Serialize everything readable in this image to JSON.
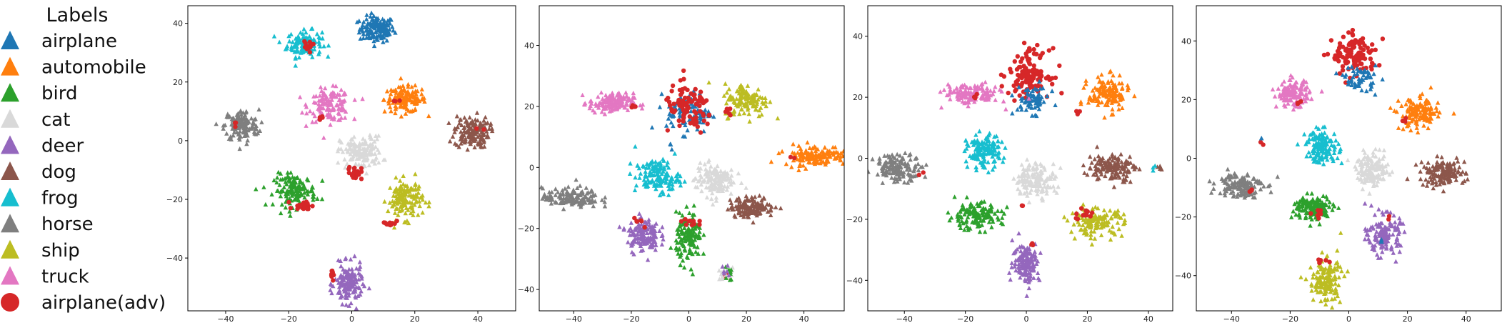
{
  "legend": {
    "title": "Labels",
    "placement": "left"
  },
  "classes": [
    {
      "key": "airplane",
      "label": "airplane",
      "color": "#1f77b4",
      "marker": "triangle"
    },
    {
      "key": "automobile",
      "label": "automobile",
      "color": "#ff7f0e",
      "marker": "triangle"
    },
    {
      "key": "bird",
      "label": "bird",
      "color": "#2ca02c",
      "marker": "triangle"
    },
    {
      "key": "cat",
      "label": "cat",
      "color": "#d9d9d9",
      "marker": "triangle"
    },
    {
      "key": "deer",
      "label": "deer",
      "color": "#9467bd",
      "marker": "triangle"
    },
    {
      "key": "dog",
      "label": "dog",
      "color": "#8c564b",
      "marker": "triangle"
    },
    {
      "key": "frog",
      "label": "frog",
      "color": "#17becf",
      "marker": "triangle"
    },
    {
      "key": "horse",
      "label": "horse",
      "color": "#7f7f7f",
      "marker": "triangle"
    },
    {
      "key": "ship",
      "label": "ship",
      "color": "#bcbd22",
      "marker": "triangle"
    },
    {
      "key": "truck",
      "label": "truck",
      "color": "#e377c2",
      "marker": "triangle"
    },
    {
      "key": "airplane_adv",
      "label": "airplane(adv)",
      "color": "#d62728",
      "marker": "circle"
    }
  ],
  "chart_data": [
    {
      "type": "scatter",
      "xlim": [
        -52,
        52
      ],
      "ylim": [
        -58,
        46
      ],
      "xticks": [
        -40,
        -20,
        0,
        20,
        40
      ],
      "yticks": [
        -40,
        -20,
        0,
        20,
        40
      ],
      "clusters": [
        {
          "cls": "airplane",
          "cx": 8,
          "cy": 38,
          "rx": 5,
          "ry": 4,
          "n": 140
        },
        {
          "cls": "frog",
          "cx": -15,
          "cy": 33,
          "rx": 5,
          "ry": 4,
          "n": 130
        },
        {
          "cls": "automobile",
          "cx": 17,
          "cy": 14,
          "rx": 6,
          "ry": 4,
          "n": 140
        },
        {
          "cls": "truck",
          "cx": -7,
          "cy": 12,
          "rx": 6,
          "ry": 5,
          "n": 140
        },
        {
          "cls": "horse",
          "cx": -35,
          "cy": 5,
          "rx": 5,
          "ry": 5,
          "n": 140
        },
        {
          "cls": "dog",
          "cx": 38,
          "cy": 3,
          "rx": 5,
          "ry": 5,
          "n": 140
        },
        {
          "cls": "cat",
          "cx": 3,
          "cy": -4,
          "rx": 6,
          "ry": 5,
          "n": 140
        },
        {
          "cls": "bird",
          "cx": -18,
          "cy": -17,
          "rx": 6,
          "ry": 5,
          "n": 140
        },
        {
          "cls": "ship",
          "cx": 17,
          "cy": -20,
          "rx": 5,
          "ry": 6,
          "n": 140
        },
        {
          "cls": "deer",
          "cx": -1,
          "cy": -49,
          "rx": 4,
          "ry": 6,
          "n": 140
        },
        {
          "cls": "airplane_adv",
          "cx": -14,
          "cy": 32,
          "rx": 1.5,
          "ry": 2,
          "n": 12
        },
        {
          "cls": "airplane_adv",
          "cx": -15,
          "cy": -22,
          "rx": 3,
          "ry": 1.5,
          "n": 22
        },
        {
          "cls": "airplane_adv",
          "cx": 1,
          "cy": -11,
          "rx": 2,
          "ry": 2,
          "n": 22
        },
        {
          "cls": "airplane_adv",
          "cx": 12,
          "cy": -28,
          "rx": 2,
          "ry": 1,
          "n": 12
        },
        {
          "cls": "airplane_adv",
          "cx": -6,
          "cy": -46,
          "rx": 1,
          "ry": 2,
          "n": 10
        },
        {
          "cls": "airplane_adv",
          "cx": -10,
          "cy": 8,
          "rx": 1,
          "ry": 1,
          "n": 5
        },
        {
          "cls": "airplane_adv",
          "cx": -37,
          "cy": 6,
          "rx": 1,
          "ry": 1,
          "n": 3
        },
        {
          "cls": "airplane_adv",
          "cx": 14,
          "cy": 14,
          "rx": 1,
          "ry": 1,
          "n": 3
        },
        {
          "cls": "airplane_adv",
          "cx": 41,
          "cy": 5,
          "rx": 1,
          "ry": 1,
          "n": 2
        }
      ]
    },
    {
      "type": "scatter",
      "xlim": [
        -52,
        54
      ],
      "ylim": [
        -47,
        53
      ],
      "xticks": [
        -40,
        -20,
        0,
        20,
        40
      ],
      "yticks": [
        -40,
        -20,
        0,
        20,
        40
      ],
      "clusters": [
        {
          "cls": "truck",
          "cx": -27,
          "cy": 21,
          "rx": 7,
          "ry": 3,
          "n": 140
        },
        {
          "cls": "airplane",
          "cx": 0,
          "cy": 18,
          "rx": 7,
          "ry": 6,
          "n": 90
        },
        {
          "cls": "ship",
          "cx": 20,
          "cy": 22,
          "rx": 7,
          "ry": 5,
          "n": 130
        },
        {
          "cls": "automobile",
          "cx": 44,
          "cy": 4,
          "rx": 10,
          "ry": 3,
          "n": 140
        },
        {
          "cls": "frog",
          "cx": -11,
          "cy": -3,
          "rx": 7,
          "ry": 5,
          "n": 140
        },
        {
          "cls": "cat",
          "cx": 9,
          "cy": -4,
          "rx": 6,
          "ry": 5,
          "n": 140
        },
        {
          "cls": "horse",
          "cx": -41,
          "cy": -10,
          "rx": 9,
          "ry": 3,
          "n": 140
        },
        {
          "cls": "dog",
          "cx": 22,
          "cy": -13,
          "rx": 7,
          "ry": 3,
          "n": 140
        },
        {
          "cls": "deer",
          "cx": -16,
          "cy": -22,
          "rx": 5,
          "ry": 5,
          "n": 140
        },
        {
          "cls": "bird",
          "cx": 0,
          "cy": -23,
          "rx": 4,
          "ry": 7,
          "n": 140
        },
        {
          "cls": "airplane_adv",
          "cx": 0,
          "cy": 19,
          "rx": 8,
          "ry": 7,
          "n": 90
        },
        {
          "cls": "airplane_adv",
          "cx": 14,
          "cy": 18,
          "rx": 2,
          "ry": 2,
          "n": 6
        },
        {
          "cls": "airplane_adv",
          "cx": -19,
          "cy": 20,
          "rx": 1,
          "ry": 1,
          "n": 4
        },
        {
          "cls": "airplane_adv",
          "cx": 0,
          "cy": -18,
          "rx": 3,
          "ry": 2,
          "n": 10
        },
        {
          "cls": "airplane_adv",
          "cx": -17,
          "cy": -18,
          "rx": 2,
          "ry": 2,
          "n": 6
        },
        {
          "cls": "airplane_adv",
          "cx": 36,
          "cy": 3,
          "rx": 1,
          "ry": 1,
          "n": 2
        },
        {
          "cls": "airplane_adv",
          "cx": 13,
          "cy": -35,
          "rx": 1,
          "ry": 1,
          "n": 3
        },
        {
          "cls": "cat",
          "cx": 13,
          "cy": -35,
          "rx": 3,
          "ry": 2,
          "n": 18
        },
        {
          "cls": "bird",
          "cx": 14,
          "cy": -35,
          "rx": 2,
          "ry": 2,
          "n": 8
        },
        {
          "cls": "deer",
          "cx": 12,
          "cy": -34,
          "rx": 2,
          "ry": 2,
          "n": 6
        },
        {
          "cls": "airplane",
          "cx": -6,
          "cy": 7,
          "rx": 1,
          "ry": 1,
          "n": 3
        }
      ]
    },
    {
      "type": "scatter",
      "xlim": [
        -52,
        48
      ],
      "ylim": [
        -50,
        50
      ],
      "xticks": [
        -40,
        -20,
        0,
        20,
        40
      ],
      "yticks": [
        -40,
        -20,
        0,
        20,
        40
      ],
      "clusters": [
        {
          "cls": "airplane_adv",
          "cx": 1,
          "cy": 28,
          "rx": 6,
          "ry": 7,
          "n": 130
        },
        {
          "cls": "airplane",
          "cx": 2,
          "cy": 19,
          "rx": 5,
          "ry": 4,
          "n": 70
        },
        {
          "cls": "truck",
          "cx": -18,
          "cy": 21,
          "rx": 8,
          "ry": 3,
          "n": 140
        },
        {
          "cls": "automobile",
          "cx": 27,
          "cy": 21,
          "rx": 6,
          "ry": 5,
          "n": 140
        },
        {
          "cls": "frog",
          "cx": -14,
          "cy": 2,
          "rx": 5,
          "ry": 5,
          "n": 140
        },
        {
          "cls": "horse",
          "cx": -42,
          "cy": -3,
          "rx": 7,
          "ry": 4,
          "n": 140
        },
        {
          "cls": "cat",
          "cx": 3,
          "cy": -7,
          "rx": 6,
          "ry": 5,
          "n": 140
        },
        {
          "cls": "dog",
          "cx": 28,
          "cy": -3,
          "rx": 7,
          "ry": 4,
          "n": 140
        },
        {
          "cls": "bird",
          "cx": -17,
          "cy": -19,
          "rx": 8,
          "ry": 4,
          "n": 140
        },
        {
          "cls": "ship",
          "cx": 23,
          "cy": -21,
          "rx": 8,
          "ry": 4,
          "n": 140
        },
        {
          "cls": "deer",
          "cx": 0,
          "cy": -34,
          "rx": 4,
          "ry": 6,
          "n": 140
        },
        {
          "cls": "airplane_adv",
          "cx": 19,
          "cy": -18,
          "rx": 3,
          "ry": 2,
          "n": 14
        },
        {
          "cls": "airplane_adv",
          "cx": 2,
          "cy": -28,
          "rx": 1,
          "ry": 1,
          "n": 3
        },
        {
          "cls": "airplane_adv",
          "cx": -17,
          "cy": 20,
          "rx": 1,
          "ry": 1,
          "n": 3
        },
        {
          "cls": "airplane_adv",
          "cx": 17,
          "cy": 15,
          "rx": 1,
          "ry": 1,
          "n": 3
        },
        {
          "cls": "airplane_adv",
          "cx": -1,
          "cy": -15,
          "rx": 1,
          "ry": 1,
          "n": 2
        },
        {
          "cls": "airplane_adv",
          "cx": -34,
          "cy": -5,
          "rx": 1,
          "ry": 1,
          "n": 2
        },
        {
          "cls": "dog",
          "cx": 44,
          "cy": -3,
          "rx": 1,
          "ry": 1,
          "n": 6
        },
        {
          "cls": "frog",
          "cx": 42,
          "cy": -4,
          "rx": 1,
          "ry": 1,
          "n": 3
        }
      ]
    },
    {
      "type": "scatter",
      "xlim": [
        -52,
        52
      ],
      "ylim": [
        -52,
        52
      ],
      "xticks": [
        -40,
        -20,
        0,
        20,
        40
      ],
      "yticks": [
        -40,
        -20,
        0,
        20,
        40
      ],
      "clusters": [
        {
          "cls": "airplane_adv",
          "cx": 2,
          "cy": 35,
          "rx": 7,
          "ry": 6,
          "n": 120
        },
        {
          "cls": "airplane",
          "cx": 4,
          "cy": 27,
          "rx": 5,
          "ry": 4,
          "n": 60
        },
        {
          "cls": "truck",
          "cx": -19,
          "cy": 22,
          "rx": 5,
          "ry": 4,
          "n": 140
        },
        {
          "cls": "automobile",
          "cx": 24,
          "cy": 15,
          "rx": 6,
          "ry": 5,
          "n": 140
        },
        {
          "cls": "frog",
          "cx": -9,
          "cy": 4,
          "rx": 5,
          "ry": 5,
          "n": 140
        },
        {
          "cls": "cat",
          "cx": 8,
          "cy": -4,
          "rx": 5,
          "ry": 5,
          "n": 140
        },
        {
          "cls": "dog",
          "cx": 32,
          "cy": -5,
          "rx": 7,
          "ry": 4,
          "n": 140
        },
        {
          "cls": "horse",
          "cx": -37,
          "cy": -9,
          "rx": 7,
          "ry": 4,
          "n": 140
        },
        {
          "cls": "bird",
          "cx": -12,
          "cy": -17,
          "rx": 6,
          "ry": 4,
          "n": 140
        },
        {
          "cls": "deer",
          "cx": 12,
          "cy": -26,
          "rx": 5,
          "ry": 6,
          "n": 140
        },
        {
          "cls": "ship",
          "cx": -8,
          "cy": -42,
          "rx": 5,
          "ry": 7,
          "n": 140
        },
        {
          "cls": "airplane_adv",
          "cx": -17,
          "cy": 19,
          "rx": 1,
          "ry": 1,
          "n": 4
        },
        {
          "cls": "airplane_adv",
          "cx": 19,
          "cy": 13,
          "rx": 1,
          "ry": 1,
          "n": 3
        },
        {
          "cls": "airplane_adv",
          "cx": -10,
          "cy": -18,
          "rx": 2,
          "ry": 2,
          "n": 8
        },
        {
          "cls": "airplane_adv",
          "cx": -33,
          "cy": -12,
          "rx": 1,
          "ry": 1,
          "n": 3
        },
        {
          "cls": "airplane_adv",
          "cx": -9,
          "cy": -35,
          "rx": 2,
          "ry": 1,
          "n": 6
        },
        {
          "cls": "airplane_adv",
          "cx": 13,
          "cy": -20,
          "rx": 1,
          "ry": 1,
          "n": 2
        },
        {
          "cls": "airplane_adv",
          "cx": -30,
          "cy": 6,
          "rx": 1,
          "ry": 1,
          "n": 2
        },
        {
          "cls": "airplane",
          "cx": -30,
          "cy": 7,
          "rx": 0.5,
          "ry": 0.5,
          "n": 2
        },
        {
          "cls": "airplane",
          "cx": 11,
          "cy": -28,
          "rx": 1,
          "ry": 1,
          "n": 3
        }
      ]
    }
  ]
}
